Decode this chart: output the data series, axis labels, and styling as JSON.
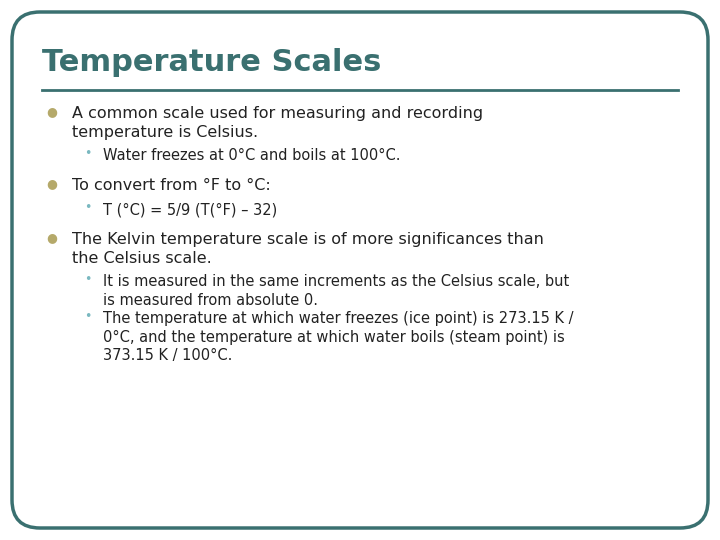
{
  "title": "Temperature Scales",
  "title_color": "#3a7070",
  "title_fontsize": 22,
  "background_color": "#ffffff",
  "border_color": "#3a7070",
  "line_color": "#3a7070",
  "text_color": "#222222",
  "bullet_color_l1": "#b5a96a",
  "bullet_color_l2": "#7ab8c0",
  "body_fontsize": 11.5,
  "sub_fontsize": 10.5,
  "bullets": [
    {
      "level": 1,
      "text": "A common scale used for measuring and recording\ntemperature is Celsius.",
      "sub": [
        {
          "level": 2,
          "text": "Water freezes at 0°C and boils at 100°C."
        }
      ]
    },
    {
      "level": 1,
      "text": "To convert from °F to °C:",
      "sub": [
        {
          "level": 2,
          "text": "T (°C) = 5/9 (T(°F) – 32)"
        }
      ]
    },
    {
      "level": 1,
      "text": "The Kelvin temperature scale is of more significances than\nthe Celsius scale.",
      "sub": [
        {
          "level": 2,
          "text": "It is measured in the same increments as the Celsius scale, but\nis measured from absolute 0."
        },
        {
          "level": 2,
          "text": "The temperature at which water freezes (ice point) is 273.15 K /\n0°C, and the temperature at which water boils (steam point) is\n373.15 K / 100°C."
        }
      ]
    }
  ]
}
